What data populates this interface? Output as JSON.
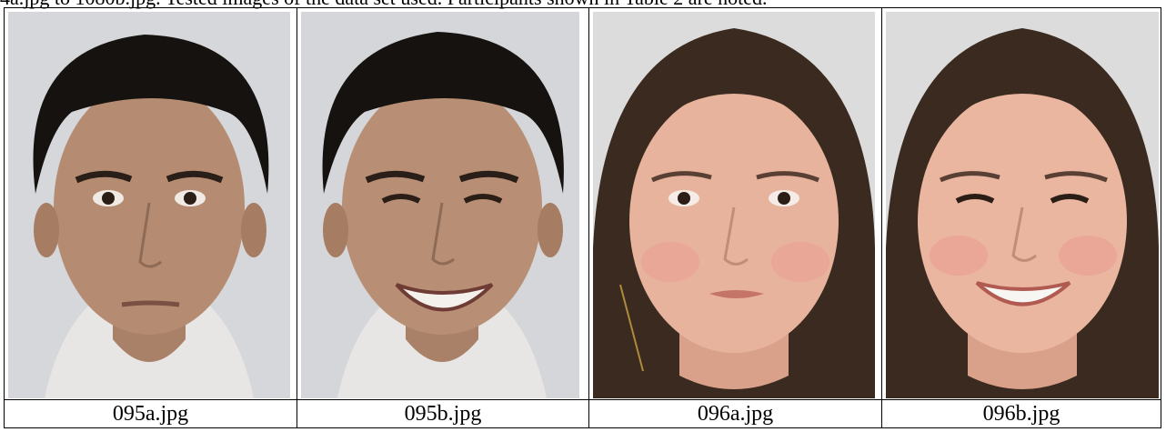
{
  "top_text": "4a.jpg to 1080b.jpg. Tested images of the data set used. Participants shown in Table 2 are noted.",
  "photos": [
    {
      "caption": "095a.jpg",
      "expression": "neutral",
      "subject": "male"
    },
    {
      "caption": "095b.jpg",
      "expression": "smiling",
      "subject": "male"
    },
    {
      "caption": "096a.jpg",
      "expression": "neutral",
      "subject": "female"
    },
    {
      "caption": "096b.jpg",
      "expression": "smiling",
      "subject": "female"
    }
  ],
  "colors": {
    "background_wall": "#d6d8db",
    "male_hair": "#15120f",
    "male_skin": "#b58c72",
    "female_hair": "#3a2a1f",
    "female_skin": "#e8b39c"
  }
}
